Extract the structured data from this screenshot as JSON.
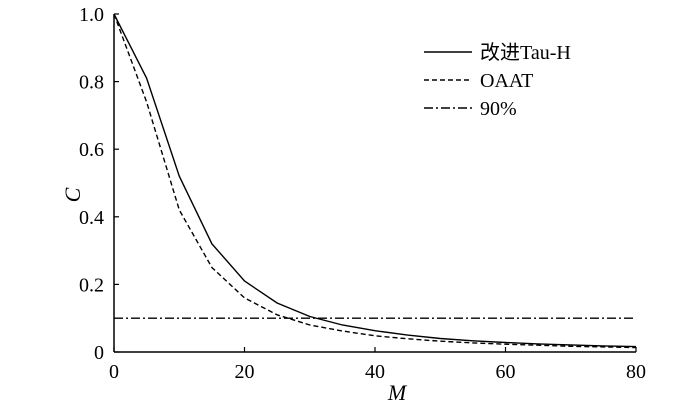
{
  "chart_data": {
    "type": "line",
    "xlabel": "M",
    "ylabel": "C",
    "xlim": [
      0,
      80
    ],
    "ylim": [
      0,
      1.0
    ],
    "xticks": [
      0,
      20,
      40,
      60,
      80
    ],
    "xtick_labels": [
      "0",
      "20",
      "40",
      "60",
      "80"
    ],
    "yticks": [
      0,
      0.2,
      0.4,
      0.6,
      0.8,
      1.0
    ],
    "ytick_labels": [
      "0",
      "0.2",
      "0.4",
      "0.6",
      "0.8",
      "1.0"
    ],
    "grid": false,
    "legend_position": "top-right",
    "series": [
      {
        "name": "改进Tau-H",
        "style": "solid",
        "x": [
          0,
          5,
          10,
          15,
          20,
          25,
          30,
          35,
          40,
          45,
          50,
          55,
          60,
          65,
          70,
          75,
          80
        ],
        "y": [
          1.0,
          0.81,
          0.52,
          0.32,
          0.21,
          0.145,
          0.105,
          0.08,
          0.063,
          0.05,
          0.04,
          0.033,
          0.028,
          0.024,
          0.021,
          0.018,
          0.016
        ]
      },
      {
        "name": "OAAT",
        "style": "dashed",
        "x": [
          0,
          5,
          10,
          15,
          20,
          25,
          30,
          35,
          40,
          45,
          50,
          55,
          60,
          65,
          70,
          75,
          80
        ],
        "y": [
          1.0,
          0.74,
          0.42,
          0.25,
          0.16,
          0.11,
          0.08,
          0.062,
          0.048,
          0.039,
          0.032,
          0.027,
          0.023,
          0.02,
          0.017,
          0.015,
          0.013
        ]
      },
      {
        "name": "90%",
        "style": "dashdot",
        "x": [
          0,
          80
        ],
        "y": [
          0.1,
          0.1
        ]
      }
    ]
  }
}
